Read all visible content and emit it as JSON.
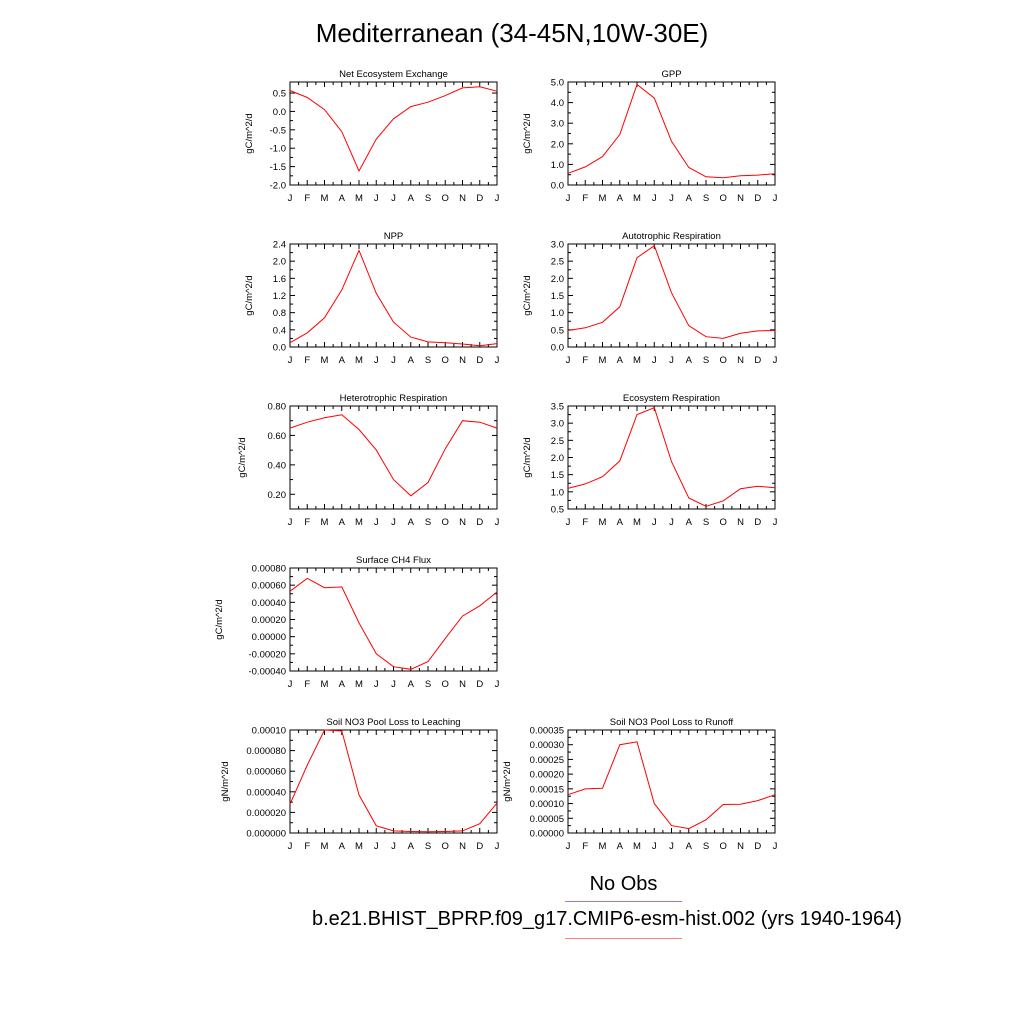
{
  "title": "Mediterranean (34-45N,10W-30E)",
  "months": [
    "J",
    "F",
    "M",
    "A",
    "M",
    "J",
    "J",
    "A",
    "S",
    "O",
    "N",
    "D",
    "J"
  ],
  "legend": {
    "obs_label": "No Obs",
    "obs_color": "#8080ff",
    "case_label": "b.e21.BHIST_BPRP.f09_g17.CMIP6-esm-hist.002 (yrs 1940-1964)",
    "case_color": "#ff8080"
  },
  "line_color": "#ff0000",
  "chart_data": [
    {
      "type": "line",
      "title": "Net Ecosystem Exchange",
      "ylabel": "gC/m^2/d",
      "ylim": [
        -2.0,
        0.8
      ],
      "yticks": [
        "-2.0",
        "-1.5",
        "-1.0",
        "-0.5",
        "0.0",
        "0.5"
      ],
      "ytick_values": [
        -2.0,
        -1.5,
        -1.0,
        -0.5,
        0.0,
        0.5
      ],
      "values": [
        0.57,
        0.38,
        0.05,
        -0.55,
        -1.62,
        -0.75,
        -0.2,
        0.13,
        0.25,
        0.43,
        0.64,
        0.67,
        0.55
      ]
    },
    {
      "type": "line",
      "title": "GPP",
      "ylabel": "gC/m^2/d",
      "ylim": [
        0.0,
        5.0
      ],
      "yticks": [
        "0.0",
        "1.0",
        "2.0",
        "3.0",
        "4.0",
        "5.0"
      ],
      "ytick_values": [
        0,
        1,
        2,
        3,
        4,
        5
      ],
      "values": [
        0.57,
        0.88,
        1.38,
        2.45,
        4.88,
        4.22,
        2.12,
        0.85,
        0.4,
        0.35,
        0.45,
        0.48,
        0.55
      ]
    },
    {
      "type": "line",
      "title": "NPP",
      "ylabel": "gC/m^2/d",
      "ylim": [
        0.0,
        2.4
      ],
      "yticks": [
        "0.0",
        "0.4",
        "0.8",
        "1.2",
        "1.6",
        "2.0",
        "2.4"
      ],
      "ytick_values": [
        0,
        0.4,
        0.8,
        1.2,
        1.6,
        2.0,
        2.4
      ],
      "values": [
        0.1,
        0.33,
        0.68,
        1.33,
        2.25,
        1.25,
        0.58,
        0.23,
        0.12,
        0.1,
        0.07,
        0.03,
        0.08
      ]
    },
    {
      "type": "line",
      "title": "Autotrophic Respiration",
      "ylabel": "gC/m^2/d",
      "ylim": [
        0.0,
        3.0
      ],
      "yticks": [
        "0.0",
        "0.5",
        "1.0",
        "1.5",
        "2.0",
        "2.5",
        "3.0"
      ],
      "ytick_values": [
        0,
        0.5,
        1.0,
        1.5,
        2.0,
        2.5,
        3.0
      ],
      "values": [
        0.48,
        0.56,
        0.72,
        1.17,
        2.6,
        2.95,
        1.58,
        0.62,
        0.3,
        0.25,
        0.4,
        0.47,
        0.48
      ]
    },
    {
      "type": "line",
      "title": "Heterotrophic Respiration",
      "ylabel": "gC/m^2/d",
      "ylim": [
        0.1,
        0.8
      ],
      "yticks": [
        "0.20",
        "0.40",
        "0.60",
        "0.80"
      ],
      "ytick_values": [
        0.2,
        0.4,
        0.6,
        0.8
      ],
      "values": [
        0.65,
        0.69,
        0.72,
        0.74,
        0.64,
        0.5,
        0.3,
        0.19,
        0.28,
        0.51,
        0.7,
        0.69,
        0.65
      ]
    },
    {
      "type": "line",
      "title": "Ecosystem Respiration",
      "ylabel": "gC/m^2/d",
      "ylim": [
        0.5,
        3.5
      ],
      "yticks": [
        "0.5",
        "1.0",
        "1.5",
        "2.0",
        "2.5",
        "3.0",
        "3.5"
      ],
      "ytick_values": [
        0.5,
        1.0,
        1.5,
        2.0,
        2.5,
        3.0,
        3.5
      ],
      "values": [
        1.1,
        1.23,
        1.44,
        1.9,
        3.25,
        3.45,
        1.88,
        0.82,
        0.58,
        0.74,
        1.09,
        1.16,
        1.12
      ]
    },
    {
      "type": "line",
      "title": "Surface CH4 Flux",
      "ylabel": "gC/m^2/d",
      "ylim": [
        -0.0004,
        0.0008
      ],
      "yticks": [
        "-0.00040",
        "-0.00020",
        "0.00000",
        "0.00020",
        "0.00040",
        "0.00060",
        "0.00080"
      ],
      "ytick_values": [
        -0.0004,
        -0.0002,
        0,
        0.0002,
        0.0004,
        0.0006,
        0.0008
      ],
      "values": [
        0.00053,
        0.00068,
        0.00057,
        0.00058,
        0.00016,
        -0.0002,
        -0.00035,
        -0.00038,
        -0.00029,
        -2e-05,
        0.00024,
        0.00036,
        0.00052
      ]
    },
    {
      "type": "line",
      "title": "Soil NO3 Pool Loss to Leaching",
      "ylabel": "gN/m^2/d",
      "ylim": [
        0.0,
        0.0001
      ],
      "yticks": [
        "0.000000",
        "0.000020",
        "0.000040",
        "0.000060",
        "0.000080",
        "0.00010"
      ],
      "ytick_values": [
        0,
        2e-05,
        4e-05,
        6e-05,
        8e-05,
        0.0001
      ],
      "values": [
        2.8e-05,
        6.6e-05,
        0.0001,
        9.9e-05,
        3.7e-05,
        7e-06,
        2e-06,
        1.5e-06,
        1.2e-06,
        1.5e-06,
        2e-06,
        9e-06,
        2.9e-05
      ]
    },
    {
      "type": "line",
      "title": "Soil NO3 Pool Loss to Runoff",
      "ylabel": "gN/m^2/d",
      "ylim": [
        0.0,
        0.00035
      ],
      "yticks": [
        "0.00000",
        "0.00005",
        "0.00010",
        "0.00015",
        "0.00020",
        "0.00025",
        "0.00030",
        "0.00035"
      ],
      "ytick_values": [
        0,
        5e-05,
        0.0001,
        0.00015,
        0.0002,
        0.00025,
        0.0003,
        0.00035
      ],
      "values": [
        0.00013,
        0.00015,
        0.000152,
        0.0003,
        0.00031,
        0.0001,
        2.5e-05,
        1.5e-05,
        4.5e-05,
        9.7e-05,
        9.8e-05,
        0.00011,
        0.00013
      ]
    }
  ]
}
